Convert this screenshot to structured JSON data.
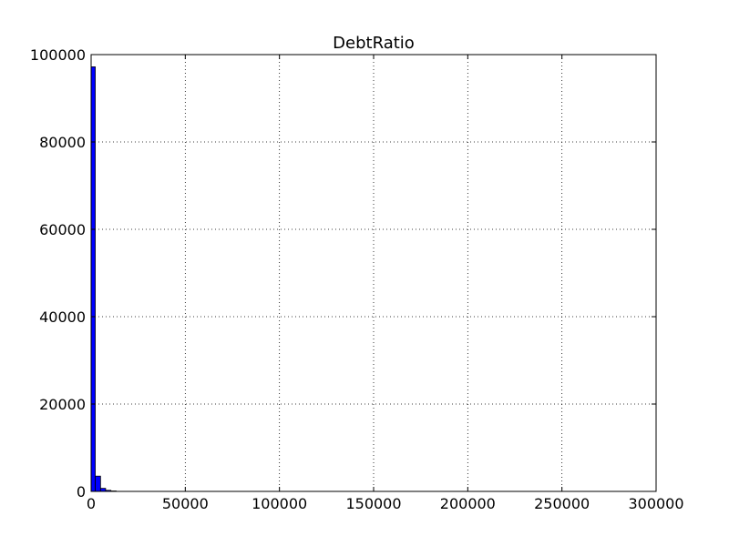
{
  "chart_data": {
    "type": "bar",
    "title": "DebtRatio",
    "xlabel": "",
    "ylabel": "",
    "xlim": [
      0,
      300000
    ],
    "ylim": [
      0,
      100000
    ],
    "grid": true,
    "legend": "none",
    "bar_color": "#0000ff",
    "x_ticks": [
      {
        "value": 0,
        "label": "0"
      },
      {
        "value": 50000,
        "label": "50000"
      },
      {
        "value": 100000,
        "label": "100000"
      },
      {
        "value": 150000,
        "label": "150000"
      },
      {
        "value": 200000,
        "label": "200000"
      },
      {
        "value": 250000,
        "label": "250000"
      },
      {
        "value": 300000,
        "label": "300000"
      }
    ],
    "y_ticks": [
      {
        "value": 0,
        "label": "0"
      },
      {
        "value": 20000,
        "label": "20000"
      },
      {
        "value": 40000,
        "label": "40000"
      },
      {
        "value": 60000,
        "label": "60000"
      },
      {
        "value": 80000,
        "label": "80000"
      },
      {
        "value": 100000,
        "label": "100000"
      }
    ],
    "bins": [
      {
        "x0": 0,
        "x1": 2200,
        "count": 97200
      },
      {
        "x0": 2200,
        "x1": 5000,
        "count": 3500
      },
      {
        "x0": 5000,
        "x1": 7700,
        "count": 700
      },
      {
        "x0": 7700,
        "x1": 10500,
        "count": 250
      },
      {
        "x0": 10500,
        "x1": 13300,
        "count": 100
      },
      {
        "x0": 266000,
        "x1": 268800,
        "count": 20
      }
    ]
  }
}
